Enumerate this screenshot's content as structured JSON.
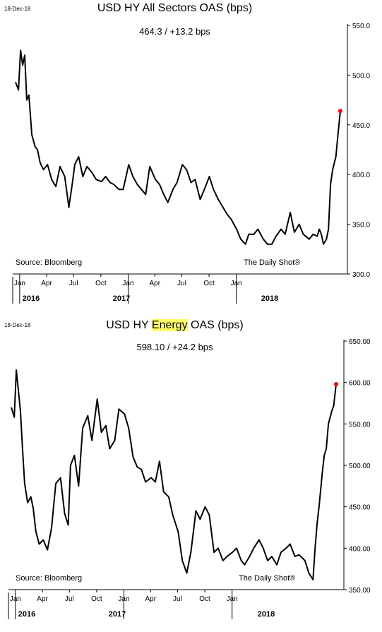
{
  "chart_data": [
    {
      "type": "line",
      "date_stamp": "18-Dec-18",
      "title": "USD HY All Sectors OAS (bps)",
      "subtitle": "464.3  /  +13.2 bps",
      "source": "Source: Bloomberg",
      "brand": "The Daily Shot®",
      "ylim": [
        300,
        550
      ],
      "y_ticks": [
        "550.0",
        "500.0",
        "450.0",
        "400.0",
        "350.0",
        "300.0"
      ],
      "x_ticks": [
        "Jan",
        "Apr",
        "Jul",
        "Oct",
        "Jan",
        "Apr",
        "Jul",
        "Oct",
        "Jan"
      ],
      "years": [
        "2016",
        "2017",
        "2018"
      ],
      "last_point_color": "#ff0000",
      "series": [
        {
          "x": [
            "2015-12-18",
            "2015-12-28",
            "2016-01-04",
            "2016-01-11",
            "2016-01-18",
            "2016-01-25",
            "2016-02-01",
            "2016-02-11",
            "2016-02-22",
            "2016-03-01",
            "2016-03-10",
            "2016-03-21",
            "2016-04-04",
            "2016-04-18",
            "2016-05-02",
            "2016-05-16",
            "2016-06-01",
            "2016-06-15",
            "2016-06-27",
            "2016-07-05",
            "2016-07-18",
            "2016-08-01",
            "2016-08-15",
            "2016-09-01",
            "2016-09-15",
            "2016-10-03",
            "2016-10-17",
            "2016-11-01",
            "2016-11-14",
            "2016-12-01",
            "2016-12-15",
            "2017-01-03",
            "2017-01-17",
            "2017-02-01",
            "2017-02-15",
            "2017-03-01",
            "2017-03-15",
            "2017-04-03",
            "2017-04-17",
            "2017-05-01",
            "2017-05-15",
            "2017-06-01",
            "2017-06-15",
            "2017-07-03",
            "2017-07-17",
            "2017-08-01",
            "2017-08-15",
            "2017-09-01",
            "2017-09-15",
            "2017-10-02",
            "2017-10-16",
            "2017-11-01",
            "2017-11-15",
            "2017-12-01",
            "2017-12-15",
            "2018-01-02",
            "2018-01-16",
            "2018-02-01",
            "2018-02-12",
            "2018-03-01",
            "2018-03-15",
            "2018-04-02",
            "2018-04-16",
            "2018-05-01",
            "2018-05-15",
            "2018-06-01",
            "2018-06-15",
            "2018-07-02",
            "2018-07-16",
            "2018-08-01",
            "2018-08-15",
            "2018-09-04",
            "2018-09-17",
            "2018-10-01",
            "2018-10-08",
            "2018-10-15",
            "2018-10-22",
            "2018-11-01",
            "2018-11-08",
            "2018-11-15",
            "2018-11-22",
            "2018-12-03",
            "2018-12-10",
            "2018-12-18"
          ],
          "values": [
            493,
            485,
            525,
            510,
            520,
            475,
            480,
            440,
            428,
            425,
            412,
            405,
            410,
            395,
            388,
            408,
            398,
            367,
            392,
            410,
            418,
            398,
            408,
            402,
            395,
            393,
            398,
            392,
            390,
            385,
            385,
            410,
            398,
            390,
            385,
            380,
            408,
            395,
            390,
            380,
            372,
            385,
            392,
            410,
            405,
            392,
            395,
            375,
            385,
            398,
            385,
            375,
            368,
            360,
            355,
            345,
            335,
            330,
            340,
            340,
            345,
            335,
            330,
            330,
            338,
            345,
            340,
            362,
            342,
            350,
            340,
            335,
            340,
            338,
            345,
            340,
            330,
            335,
            345,
            390,
            405,
            418,
            440,
            464
          ]
        }
      ]
    },
    {
      "type": "line",
      "date_stamp": "18-Dec-18",
      "title_pre": "USD HY",
      "title_highlight": "Energy",
      "title_post": "OAS (bps)",
      "subtitle": "598.10  /  +24.2 bps",
      "source": "Source: Bloomberg",
      "brand": "The Daily Shot®",
      "ylim": [
        350,
        650
      ],
      "y_ticks": [
        "650.00",
        "600.00",
        "550.00",
        "500.00",
        "450.00",
        "400.00",
        "350.00"
      ],
      "x_ticks": [
        "Jan",
        "Apr",
        "Jul",
        "Oct",
        "Jan",
        "Apr",
        "Jul",
        "Oct",
        "Jan"
      ],
      "years": [
        "2016",
        "2017",
        "2018"
      ],
      "last_point_color": "#ff0000",
      "series": [
        {
          "x": [
            "2015-12-18",
            "2015-12-28",
            "2016-01-04",
            "2016-01-11",
            "2016-01-18",
            "2016-01-25",
            "2016-02-01",
            "2016-02-11",
            "2016-02-22",
            "2016-03-01",
            "2016-03-10",
            "2016-03-21",
            "2016-04-04",
            "2016-04-18",
            "2016-05-02",
            "2016-05-16",
            "2016-06-01",
            "2016-06-15",
            "2016-06-27",
            "2016-07-05",
            "2016-07-18",
            "2016-08-01",
            "2016-08-15",
            "2016-09-01",
            "2016-09-15",
            "2016-10-03",
            "2016-10-17",
            "2016-11-01",
            "2016-11-14",
            "2016-12-01",
            "2016-12-15",
            "2017-01-03",
            "2017-01-17",
            "2017-02-01",
            "2017-02-15",
            "2017-03-01",
            "2017-03-15",
            "2017-04-03",
            "2017-04-17",
            "2017-05-01",
            "2017-05-15",
            "2017-06-01",
            "2017-06-15",
            "2017-07-03",
            "2017-07-17",
            "2017-08-01",
            "2017-08-15",
            "2017-09-01",
            "2017-09-15",
            "2017-10-02",
            "2017-10-16",
            "2017-11-01",
            "2017-11-15",
            "2017-12-01",
            "2017-12-15",
            "2018-01-02",
            "2018-01-16",
            "2018-02-01",
            "2018-02-12",
            "2018-03-01",
            "2018-03-15",
            "2018-04-02",
            "2018-04-16",
            "2018-05-01",
            "2018-05-15",
            "2018-06-01",
            "2018-06-15",
            "2018-07-02",
            "2018-07-16",
            "2018-08-01",
            "2018-08-15",
            "2018-09-04",
            "2018-09-17",
            "2018-10-01",
            "2018-10-08",
            "2018-10-15",
            "2018-10-22",
            "2018-11-01",
            "2018-11-08",
            "2018-11-15",
            "2018-11-22",
            "2018-12-03",
            "2018-12-10",
            "2018-12-18"
          ],
          "values": [
            570,
            558,
            615,
            590,
            565,
            520,
            478,
            455,
            462,
            448,
            420,
            405,
            410,
            398,
            425,
            478,
            485,
            442,
            428,
            500,
            512,
            475,
            545,
            560,
            530,
            580,
            540,
            548,
            520,
            530,
            568,
            562,
            545,
            510,
            498,
            495,
            480,
            485,
            480,
            505,
            468,
            462,
            440,
            420,
            385,
            370,
            395,
            445,
            435,
            450,
            440,
            395,
            400,
            385,
            390,
            395,
            400,
            385,
            380,
            390,
            400,
            410,
            400,
            385,
            390,
            380,
            395,
            400,
            405,
            390,
            392,
            385,
            370,
            362,
            400,
            430,
            452,
            490,
            512,
            520,
            550,
            565,
            572,
            598
          ]
        }
      ]
    }
  ]
}
